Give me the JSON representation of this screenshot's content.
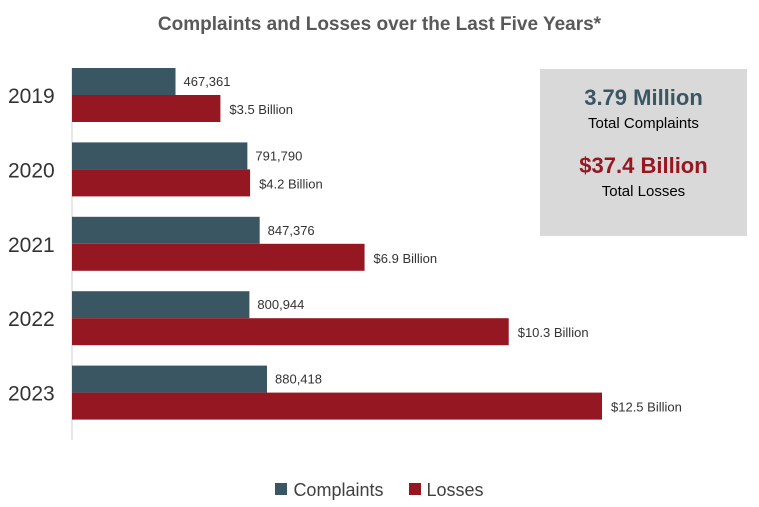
{
  "title": "Complaints and Losses over the Last Five Years*",
  "summary": {
    "complaints_total": "3.79 Million",
    "complaints_label": "Total Complaints",
    "losses_total": "$37.4 Billion",
    "losses_label": "Total Losses"
  },
  "colors": {
    "complaints": "#3b5663",
    "losses": "#951722",
    "complaints_text": "#3b5663",
    "losses_text": "#951722"
  },
  "legend": [
    {
      "name": "Complaints",
      "color": "#3b5663"
    },
    {
      "name": "Losses",
      "color": "#951722"
    }
  ],
  "chart_data": {
    "type": "bar",
    "orientation": "horizontal",
    "categories": [
      "2019",
      "2020",
      "2021",
      "2022",
      "2023"
    ],
    "series": [
      {
        "name": "Complaints",
        "values": [
          467361,
          791790,
          847376,
          800944,
          880418
        ],
        "labels": [
          "467,361",
          "791,790",
          "847,376",
          "800,944",
          "880,418"
        ]
      },
      {
        "name": "Losses",
        "values": [
          3.5,
          4.2,
          6.9,
          10.3,
          12.5
        ],
        "labels": [
          "$3.5 Billion",
          "$4.2 Billion",
          "$6.9 Billion",
          "$10.3 Billion",
          "$12.5 Billion"
        ]
      }
    ],
    "legend_position": "bottom",
    "grid": false
  }
}
